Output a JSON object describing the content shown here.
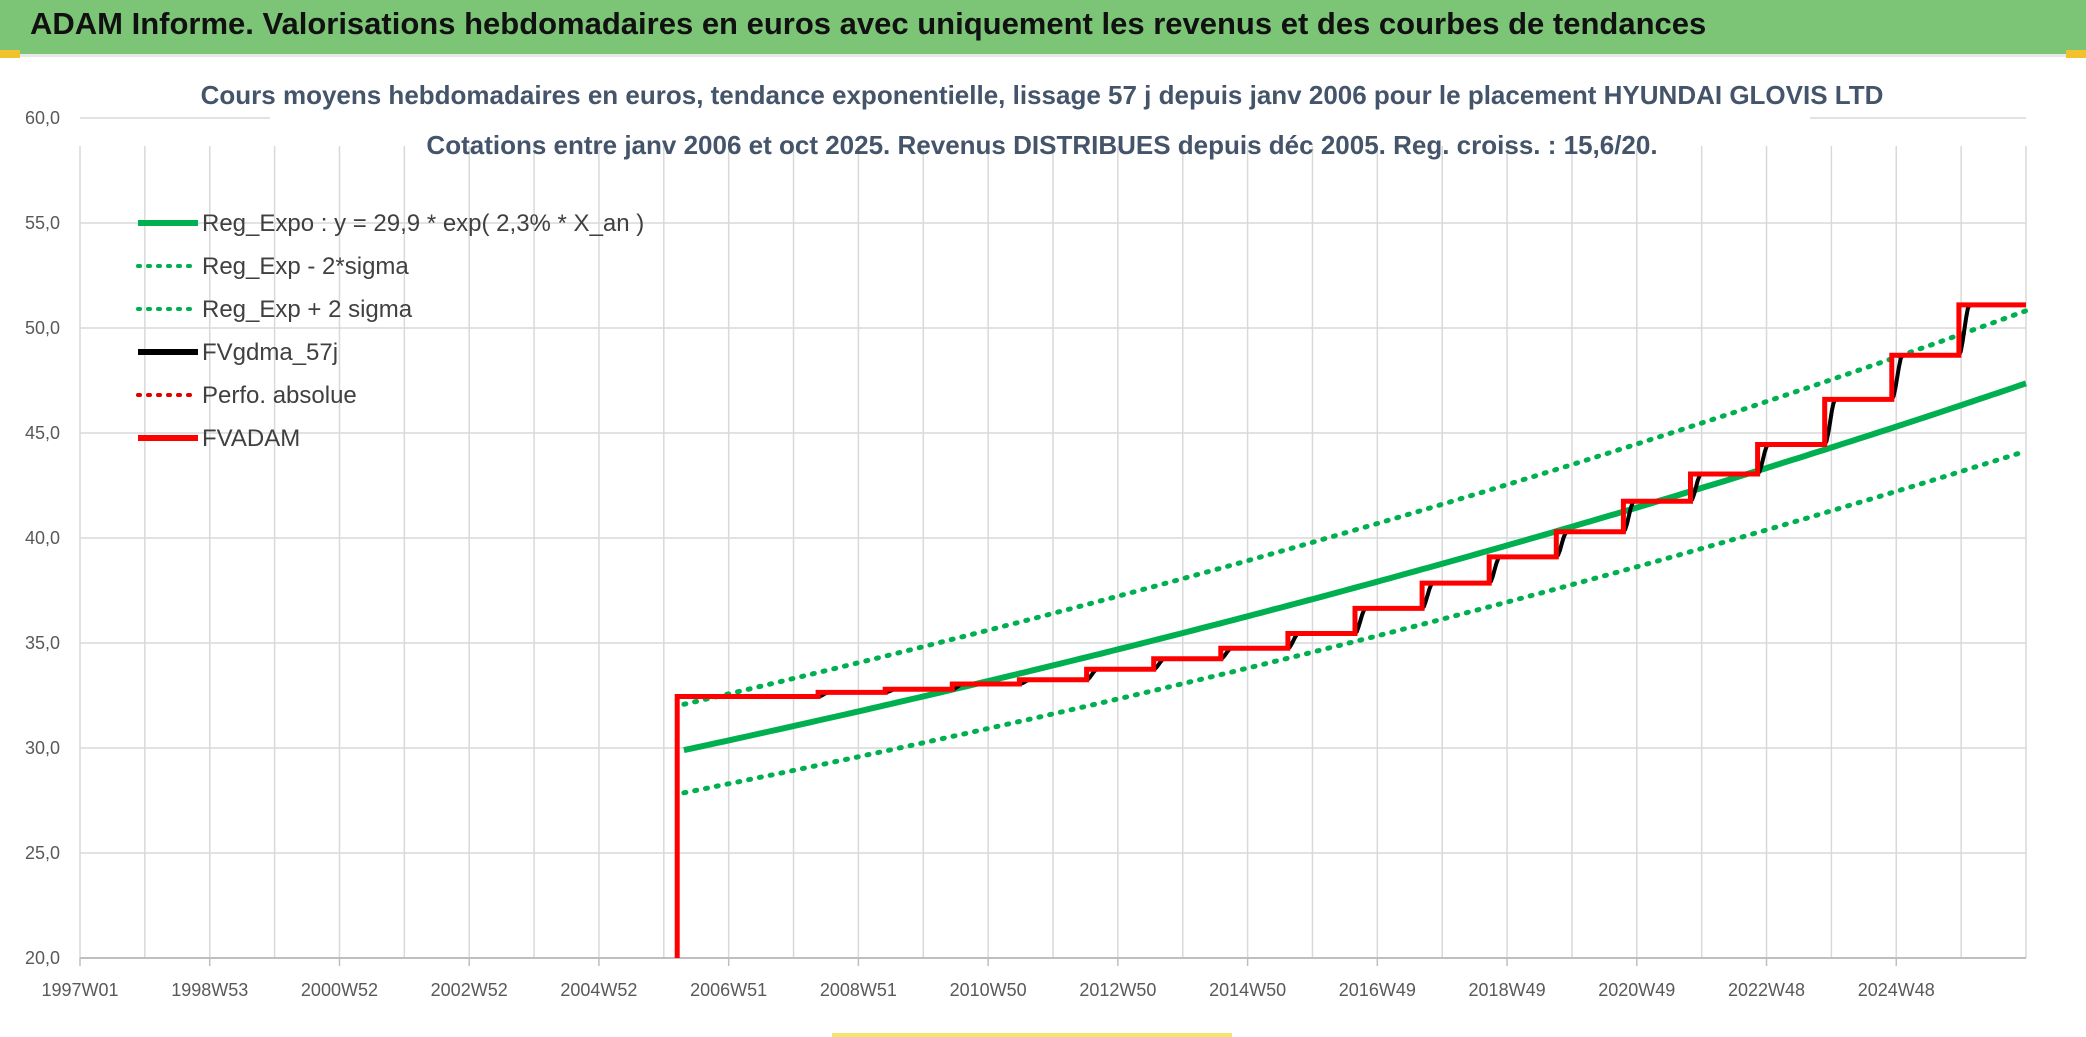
{
  "header": {
    "title": "ADAM Informe. Valorisations hebdomadaires en euros avec uniquement les revenus et des courbes de tendances"
  },
  "chart_data": {
    "type": "line",
    "title": "Cours moyens hebdomadaires en euros, tendance exponentielle, lissage 57 j depuis janv 2006 pour le placement HYUNDAI GLOVIS LTD",
    "subtitle": "Cotations entre janv 2006 et oct 2025. Revenus DISTRIBUES depuis déc 2005. Reg. croiss. : 15,6/20.",
    "xlabel": "",
    "ylabel": "",
    "x_ticks": [
      "1997W01",
      "1998W53",
      "2000W52",
      "2002W52",
      "2004W52",
      "2006W51",
      "2008W51",
      "2010W50",
      "2012W50",
      "2014W50",
      "2016W49",
      "2018W49",
      "2020W49",
      "2022W48",
      "2024W48"
    ],
    "x_range": [
      1997.0,
      2026.0
    ],
    "ylim": [
      20,
      60
    ],
    "y_ticks": [
      "20,0",
      "25,0",
      "30,0",
      "35,0",
      "40,0",
      "45,0",
      "50,0",
      "55,0",
      "60,0"
    ],
    "grid": true,
    "legend_position": "top-left",
    "regression": {
      "a": 29.9,
      "rate": 0.023,
      "start_year": 2006.0,
      "sigma_factor": 1.073
    },
    "series": [
      {
        "name": "Reg_Expo : y = 29,9 * exp( 2,3% *  X_an )",
        "color": "#00b050",
        "style": "solid",
        "x": [
          2006.0,
          2026.0
        ],
        "y": [
          29.9,
          47.5
        ]
      },
      {
        "name": "Reg_Exp - 2*sigma",
        "color": "#00b050",
        "style": "dotted",
        "x": [
          2006.0,
          2026.0
        ],
        "y": [
          27.8,
          44.0
        ]
      },
      {
        "name": "Reg_Exp + 2 sigma",
        "color": "#00b050",
        "style": "dotted",
        "x": [
          2006.0,
          2026.0
        ],
        "y": [
          32.2,
          50.9
        ]
      },
      {
        "name": "FVgdma_57j",
        "color": "#000000",
        "style": "solid",
        "x": [
          2005.9,
          2026.0
        ],
        "y": [
          32.45,
          51.1
        ]
      },
      {
        "name": "Perfo. absolue",
        "color": "#e00000",
        "style": "dotted",
        "x": [],
        "y": []
      },
      {
        "name": "FVADAM",
        "color": "#ff0000",
        "style": "solid",
        "start": [
          2005.9,
          20.0
        ],
        "steps": [
          [
            2005.9,
            32.45
          ],
          [
            2008.0,
            32.65
          ],
          [
            2009.0,
            32.8
          ],
          [
            2010.0,
            33.05
          ],
          [
            2011.0,
            33.25
          ],
          [
            2012.0,
            33.75
          ],
          [
            2013.0,
            34.25
          ],
          [
            2014.0,
            34.75
          ],
          [
            2015.0,
            35.45
          ],
          [
            2016.0,
            36.65
          ],
          [
            2017.0,
            37.85
          ],
          [
            2018.0,
            39.1
          ],
          [
            2019.0,
            40.3
          ],
          [
            2020.0,
            41.75
          ],
          [
            2021.0,
            43.05
          ],
          [
            2022.0,
            44.45
          ],
          [
            2023.0,
            46.6
          ],
          [
            2024.0,
            48.7
          ],
          [
            2025.0,
            51.1
          ]
        ],
        "end_x": 2026.0
      }
    ]
  }
}
